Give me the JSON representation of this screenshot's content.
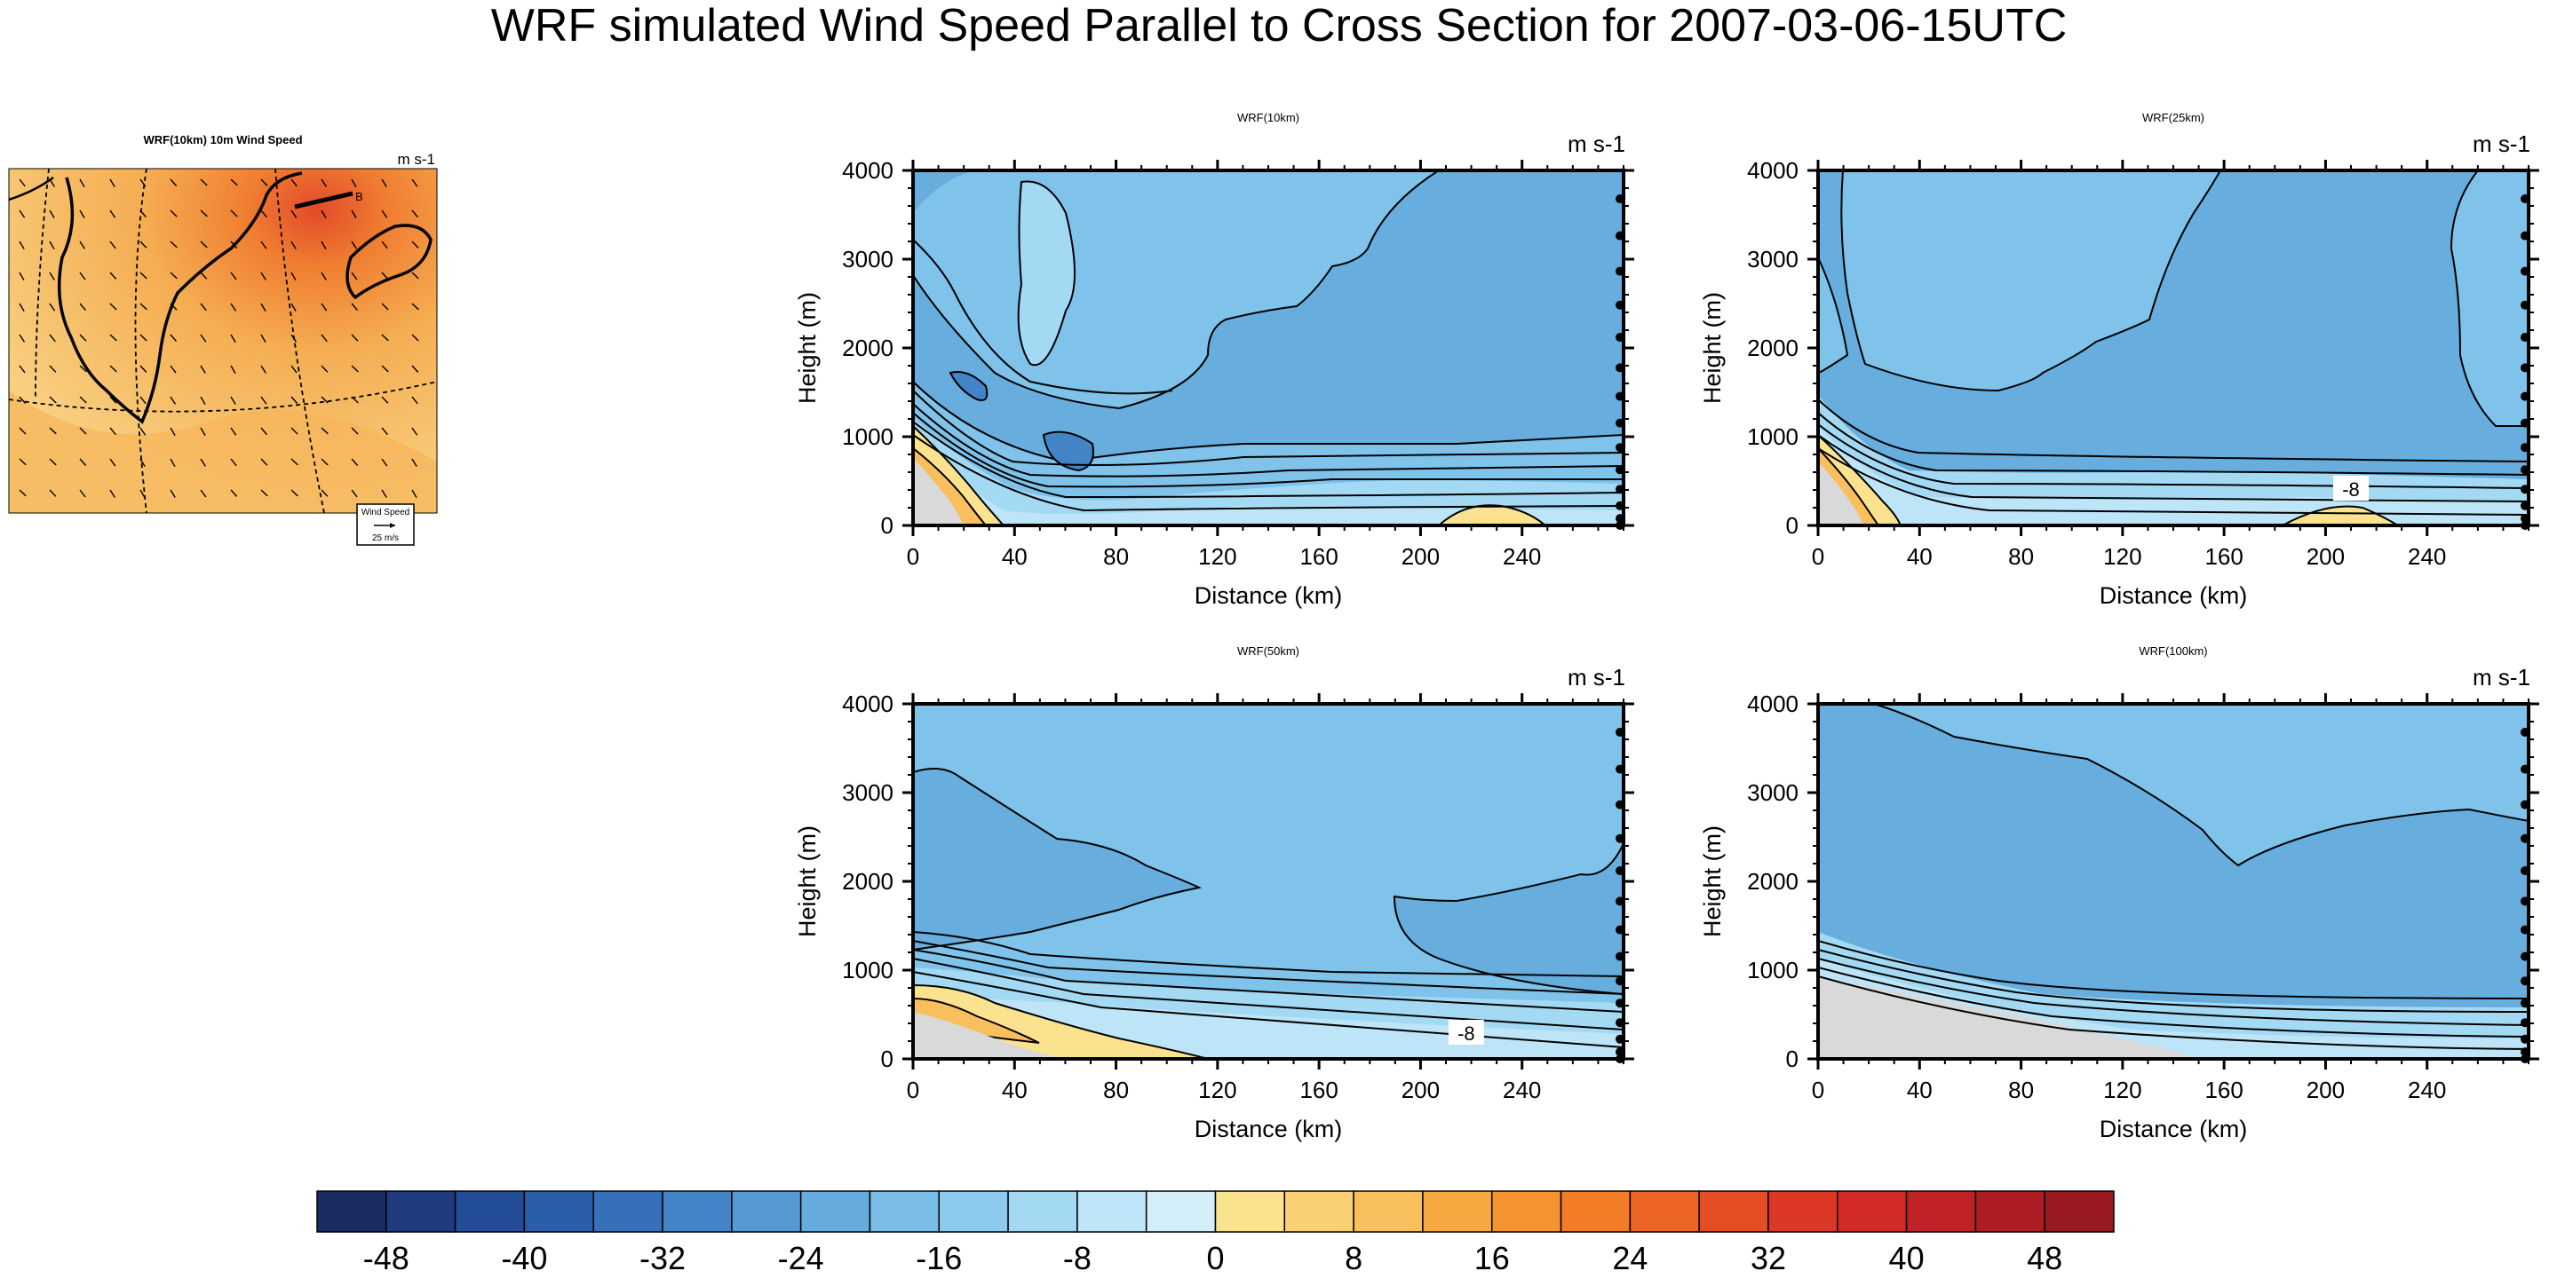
{
  "title": "WRF simulated Wind Speed Parallel to Cross Section for 2007-03-06-15UTC",
  "map": {
    "title": "WRF(10km) 10m Wind Speed",
    "units": "m s-1",
    "ref_vector_title": "Wind Speed",
    "ref_vector_value": "25 m/s",
    "section_end_label": "B"
  },
  "colors": {
    "terrain": "#d9d9d9",
    "map_low": "#f8d283",
    "map_mid": "#f5ad52",
    "map_high": "#e24a2a"
  },
  "chart_data": [
    {
      "type": "heatmap",
      "title": "WRF(10km)",
      "units": "m s-1",
      "xlabel": "Distance (km)",
      "ylabel": "Height (m)",
      "xlim": [
        0,
        280
      ],
      "ylim": [
        0,
        4000
      ],
      "xticks": [
        "0",
        "40",
        "80",
        "120",
        "160",
        "200",
        "240"
      ],
      "yticks": [
        "0",
        "1000",
        "2000",
        "3000",
        "4000"
      ],
      "contour_labels": []
    },
    {
      "type": "heatmap",
      "title": "WRF(25km)",
      "units": "m s-1",
      "xlabel": "Distance (km)",
      "ylabel": "Height (m)",
      "xlim": [
        0,
        280
      ],
      "ylim": [
        0,
        4000
      ],
      "xticks": [
        "0",
        "40",
        "80",
        "120",
        "160",
        "200",
        "240"
      ],
      "yticks": [
        "0",
        "1000",
        "2000",
        "3000",
        "4000"
      ],
      "contour_labels": [
        {
          "x": 210,
          "y": 400,
          "text": "-8"
        }
      ]
    },
    {
      "type": "heatmap",
      "title": "WRF(50km)",
      "units": "m s-1",
      "xlabel": "Distance (km)",
      "ylabel": "Height (m)",
      "xlim": [
        0,
        280
      ],
      "ylim": [
        0,
        4000
      ],
      "xticks": [
        "0",
        "40",
        "80",
        "120",
        "160",
        "200",
        "240"
      ],
      "yticks": [
        "0",
        "1000",
        "2000",
        "3000",
        "4000"
      ],
      "contour_labels": [
        {
          "x": 218,
          "y": 280,
          "text": "-8"
        }
      ]
    },
    {
      "type": "heatmap",
      "title": "WRF(100km)",
      "units": "m s-1",
      "xlabel": "Distance (km)",
      "ylabel": "Height (m)",
      "xlim": [
        0,
        280
      ],
      "ylim": [
        0,
        4000
      ],
      "xticks": [
        "0",
        "40",
        "80",
        "120",
        "160",
        "200",
        "240"
      ],
      "yticks": [
        "0",
        "1000",
        "2000",
        "3000",
        "4000"
      ],
      "contour_labels": []
    }
  ],
  "colorbar": {
    "levels": [
      -52,
      -48,
      -44,
      -40,
      -36,
      -32,
      -28,
      -24,
      -20,
      -16,
      -12,
      -8,
      -4,
      0,
      4,
      8,
      12,
      16,
      20,
      24,
      28,
      32,
      36,
      40,
      44,
      48,
      52
    ],
    "tick_labels": [
      "-48",
      "-40",
      "-32",
      "-24",
      "-16",
      "-8",
      "0",
      "8",
      "16",
      "24",
      "32",
      "40",
      "48"
    ],
    "colors": [
      "#1b2c63",
      "#1f3a7d",
      "#234d96",
      "#2b5ea9",
      "#3570b8",
      "#4384c7",
      "#5499d4",
      "#66abdd",
      "#79bde6",
      "#8dcbee",
      "#a4d9f4",
      "#bde5f7",
      "#d4eff9",
      "#fbe28e",
      "#f9d173",
      "#f8bf5c",
      "#f6a940",
      "#f59330",
      "#f37c27",
      "#ee6425",
      "#e54d25",
      "#dd3826",
      "#d32a27",
      "#c02226",
      "#ad1d23",
      "#991a20"
    ]
  }
}
